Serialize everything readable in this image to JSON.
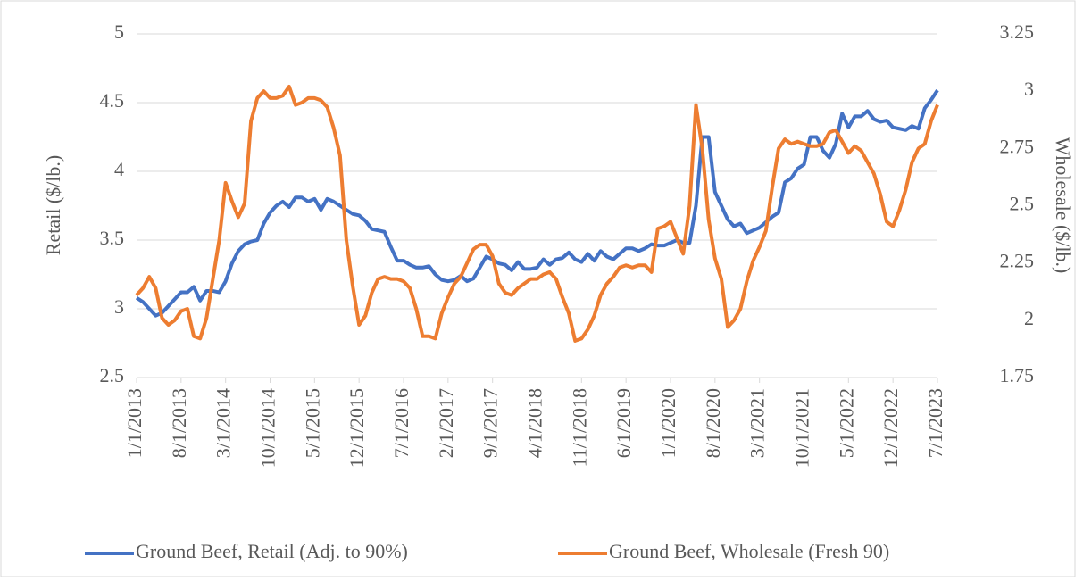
{
  "chart_data": {
    "type": "line",
    "categories": [
      "1/1/2013",
      null,
      null,
      null,
      null,
      null,
      null,
      "8/1/2013",
      null,
      null,
      null,
      null,
      null,
      null,
      "3/1/2014",
      null,
      null,
      null,
      null,
      null,
      null,
      "10/1/2014",
      null,
      null,
      null,
      null,
      null,
      null,
      "5/1/2015",
      null,
      null,
      null,
      null,
      null,
      null,
      "12/1/2015",
      null,
      null,
      null,
      null,
      null,
      null,
      "7/1/2016",
      null,
      null,
      null,
      null,
      null,
      null,
      "2/1/2017",
      null,
      null,
      null,
      null,
      null,
      null,
      "9/1/2017",
      null,
      null,
      null,
      null,
      null,
      null,
      "4/1/2018",
      null,
      null,
      null,
      null,
      null,
      null,
      "11/1/2018",
      null,
      null,
      null,
      null,
      null,
      null,
      "6/1/2019",
      null,
      null,
      null,
      null,
      null,
      null,
      "1/1/2020",
      null,
      null,
      null,
      null,
      null,
      null,
      "8/1/2020",
      null,
      null,
      null,
      null,
      null,
      null,
      "3/1/2021",
      null,
      null,
      null,
      null,
      null,
      null,
      "10/1/2021",
      null,
      null,
      null,
      null,
      null,
      null,
      "5/1/2022",
      null,
      null,
      null,
      null,
      null,
      null,
      "12/1/2022",
      null,
      null,
      null,
      null,
      null,
      null,
      "7/1/2023"
    ],
    "series": [
      {
        "name": "Ground Beef, Retail (Adj. to 90%)",
        "color": "#4472c4",
        "axis": "y",
        "values": [
          3.08,
          3.05,
          3.0,
          2.95,
          2.97,
          3.02,
          3.07,
          3.12,
          3.12,
          3.16,
          3.06,
          3.13,
          3.13,
          3.12,
          3.2,
          3.33,
          3.42,
          3.47,
          3.49,
          3.5,
          3.62,
          3.7,
          3.75,
          3.78,
          3.74,
          3.81,
          3.81,
          3.78,
          3.8,
          3.72,
          3.8,
          3.78,
          3.75,
          3.72,
          3.69,
          3.68,
          3.64,
          3.58,
          3.57,
          3.56,
          3.45,
          3.35,
          3.35,
          3.32,
          3.3,
          3.3,
          3.31,
          3.25,
          3.21,
          3.2,
          3.21,
          3.24,
          3.2,
          3.22,
          3.3,
          3.38,
          3.36,
          3.33,
          3.32,
          3.28,
          3.34,
          3.29,
          3.29,
          3.3,
          3.36,
          3.32,
          3.36,
          3.37,
          3.41,
          3.36,
          3.34,
          3.4,
          3.35,
          3.42,
          3.38,
          3.36,
          3.4,
          3.44,
          3.44,
          3.42,
          3.44,
          3.47,
          3.46,
          3.46,
          3.48,
          3.5,
          3.48,
          3.48,
          3.75,
          4.25,
          4.25,
          3.85,
          3.75,
          3.65,
          3.6,
          3.62,
          3.55,
          3.57,
          3.59,
          3.63,
          3.67,
          3.7,
          3.92,
          3.95,
          4.02,
          4.05,
          4.25,
          4.25,
          4.15,
          4.1,
          4.2,
          4.42,
          4.32,
          4.4,
          4.4,
          4.44,
          4.38,
          4.36,
          4.37,
          4.32,
          4.31,
          4.3,
          4.33,
          4.31,
          4.46,
          4.52,
          4.59
        ]
      },
      {
        "name": "Ground Beef, Wholesale (Fresh 90)",
        "color": "#ed7d31",
        "axis": "y2",
        "values": [
          2.11,
          2.14,
          2.19,
          2.14,
          2.01,
          1.98,
          2.0,
          2.04,
          2.05,
          1.93,
          1.92,
          2.01,
          2.18,
          2.35,
          2.6,
          2.52,
          2.45,
          2.51,
          2.87,
          2.97,
          3.0,
          2.97,
          2.97,
          2.98,
          3.02,
          2.94,
          2.95,
          2.97,
          2.97,
          2.96,
          2.93,
          2.84,
          2.72,
          2.35,
          2.15,
          1.98,
          2.02,
          2.12,
          2.18,
          2.19,
          2.18,
          2.18,
          2.17,
          2.14,
          2.05,
          1.93,
          1.93,
          1.92,
          2.03,
          2.1,
          2.16,
          2.19,
          2.25,
          2.31,
          2.33,
          2.33,
          2.28,
          2.16,
          2.12,
          2.11,
          2.14,
          2.16,
          2.18,
          2.18,
          2.2,
          2.21,
          2.18,
          2.1,
          2.03,
          1.91,
          1.92,
          1.96,
          2.02,
          2.11,
          2.16,
          2.19,
          2.23,
          2.24,
          2.23,
          2.24,
          2.24,
          2.21,
          2.4,
          2.41,
          2.43,
          2.36,
          2.29,
          2.5,
          2.94,
          2.75,
          2.44,
          2.27,
          2.18,
          1.97,
          2.0,
          2.05,
          2.17,
          2.26,
          2.32,
          2.39,
          2.58,
          2.75,
          2.79,
          2.77,
          2.78,
          2.77,
          2.76,
          2.76,
          2.77,
          2.82,
          2.83,
          2.78,
          2.73,
          2.76,
          2.74,
          2.69,
          2.64,
          2.55,
          2.43,
          2.41,
          2.48,
          2.57,
          2.69,
          2.75,
          2.77,
          2.87,
          2.94
        ]
      }
    ],
    "y_label": "Retail ($/lb.)",
    "y2_label": "Wholesale ($/lb.)",
    "ylim": [
      2.5,
      5
    ],
    "yticks": [
      2.5,
      3,
      3.5,
      4,
      4.5,
      5
    ],
    "y2lim": [
      1.75,
      3.25
    ],
    "y2ticks": [
      1.75,
      2,
      2.25,
      2.5,
      2.75,
      3,
      3.25
    ],
    "grid": true,
    "legend": "bottom"
  }
}
